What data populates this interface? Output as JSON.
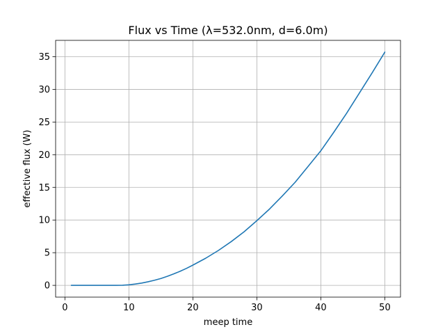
{
  "chart_data": {
    "type": "line",
    "title": "Flux vs Time (λ=532.0nm, d=6.0m)",
    "xlabel": "meep time",
    "ylabel": "effective flux (W)",
    "xlim": [
      -1.45,
      52.45
    ],
    "ylim": [
      -1.8,
      37.5
    ],
    "xticks": [
      0,
      10,
      20,
      30,
      40,
      50
    ],
    "yticks": [
      0,
      5,
      10,
      15,
      20,
      25,
      30,
      35
    ],
    "grid": true,
    "color": "#1f77b4",
    "series": [
      {
        "x": [
          1,
          2,
          4,
          6,
          8,
          9,
          10,
          11,
          12,
          13,
          14,
          15,
          16,
          17,
          18,
          19,
          20,
          22,
          24,
          26,
          28,
          30,
          32,
          34,
          36,
          38,
          40,
          42,
          44,
          46,
          48,
          50
        ],
        "y": [
          0,
          0,
          0,
          0,
          0,
          0.02,
          0.08,
          0.2,
          0.35,
          0.55,
          0.78,
          1.05,
          1.38,
          1.75,
          2.15,
          2.6,
          3.1,
          4.15,
          5.35,
          6.7,
          8.2,
          9.9,
          11.7,
          13.7,
          15.8,
          18.2,
          20.6,
          23.4,
          26.3,
          29.4,
          32.5,
          35.7
        ]
      }
    ]
  }
}
